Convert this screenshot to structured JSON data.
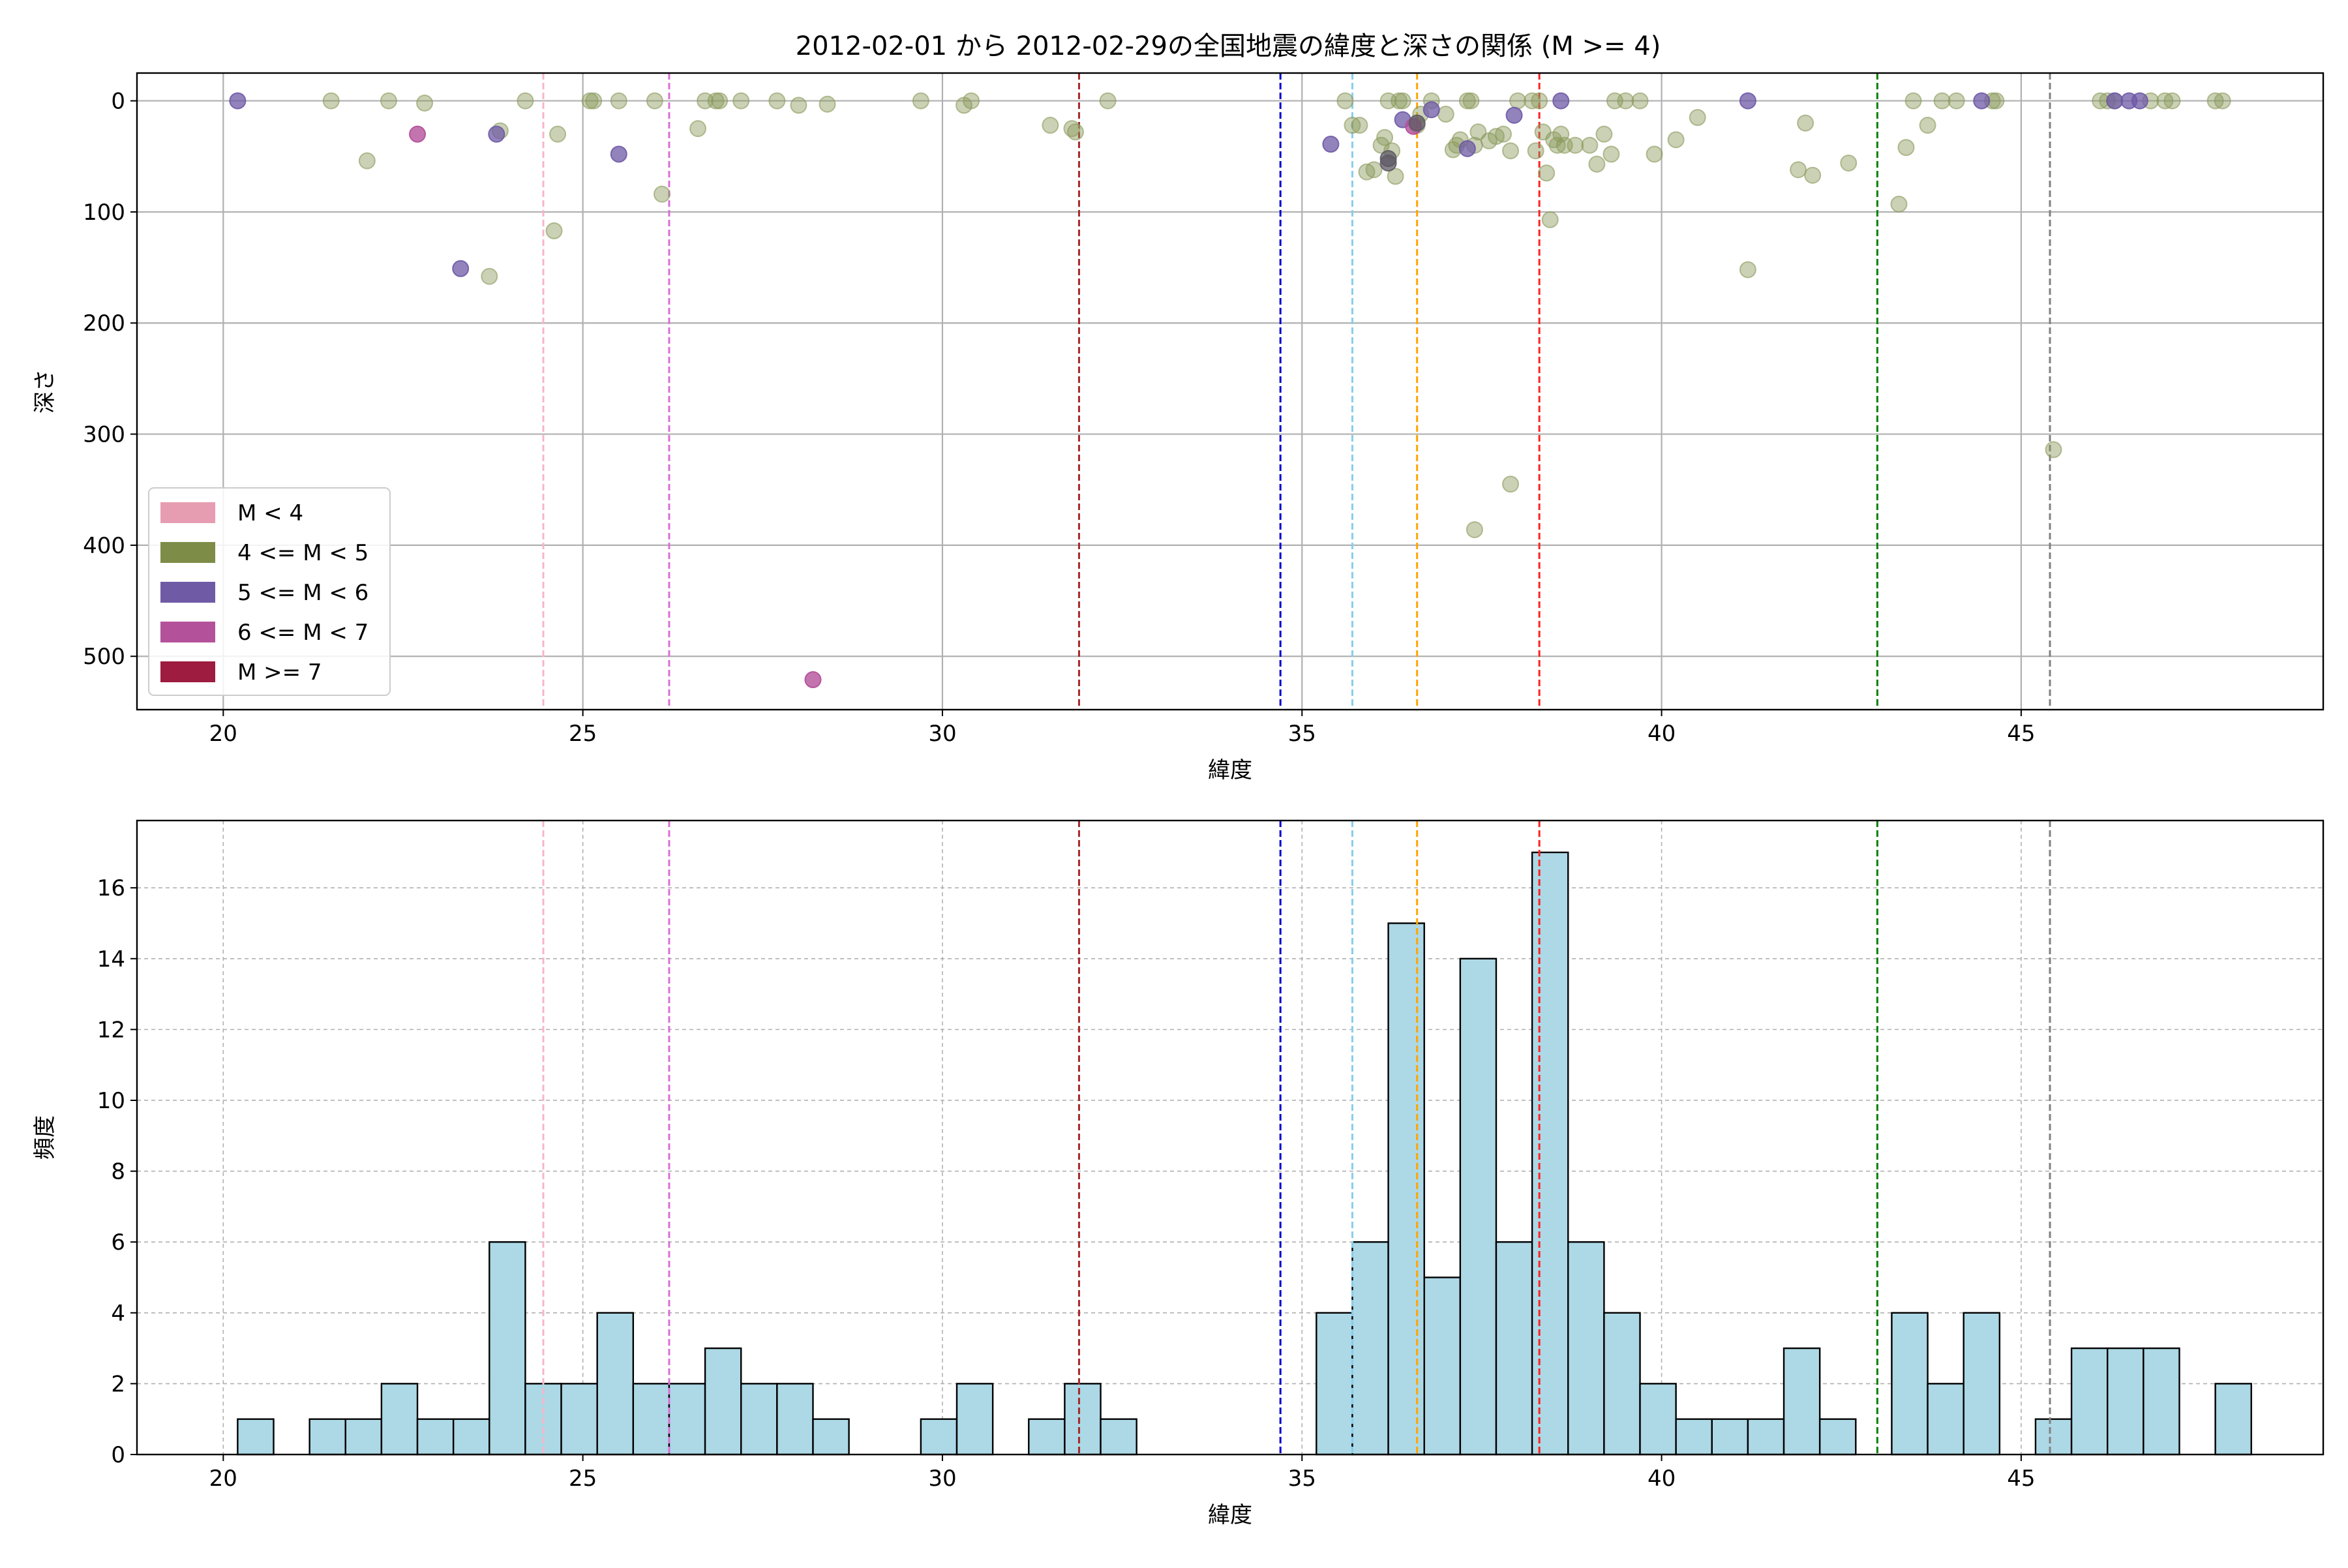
{
  "title": "2012-02-01 から 2012-02-29の全国地震の緯度と深さの関係 (M >= 4)",
  "colors": {
    "scatter_default": "#8a9a5b",
    "hist_fill": "#add8e6",
    "grid": "#b0b0b0"
  },
  "chart_data": [
    {
      "type": "scatter",
      "xlabel": "緯度",
      "ylabel": "深さ",
      "xlim": [
        18.8,
        49.2
      ],
      "ylim": [
        548,
        -25
      ],
      "y_inverted": true,
      "grid": true,
      "x_ticks": [
        20,
        25,
        30,
        35,
        40,
        45
      ],
      "y_ticks": [
        0,
        100,
        200,
        300,
        400,
        500
      ],
      "legend": {
        "position": "lower-left",
        "entries": [
          {
            "label": "M < 4",
            "color": "#e79db1"
          },
          {
            "label": "4 <= M < 5",
            "color": "#7d8c47"
          },
          {
            "label": "5 <= M < 6",
            "color": "#6f5aa6"
          },
          {
            "label": "6 <= M < 7",
            "color": "#b4519b"
          },
          {
            "label": "M >= 7",
            "color": "#9d1c3f"
          }
        ]
      },
      "reference_lines": [
        {
          "x": 24.45,
          "color": "#f7b6c8"
        },
        {
          "x": 26.2,
          "color": "#da70d6"
        },
        {
          "x": 31.9,
          "color": "#a52a2a"
        },
        {
          "x": 34.7,
          "color": "#0000cd"
        },
        {
          "x": 35.7,
          "color": "#87ceeb"
        },
        {
          "x": 36.6,
          "color": "#ffa500"
        },
        {
          "x": 38.3,
          "color": "#ff2020"
        },
        {
          "x": 43.0,
          "color": "#008000"
        },
        {
          "x": 45.4,
          "color": "#808080"
        }
      ],
      "series": [
        {
          "class": "4 <= M < 5",
          "color": "#8a9a5b",
          "opacity": 0.45,
          "points": [
            [
              21.5,
              0
            ],
            [
              22.0,
              54
            ],
            [
              22.3,
              0
            ],
            [
              22.8,
              2
            ],
            [
              23.7,
              158
            ],
            [
              23.85,
              27
            ],
            [
              24.2,
              0
            ],
            [
              24.6,
              117
            ],
            [
              24.65,
              30
            ],
            [
              25.1,
              0
            ],
            [
              25.15,
              0
            ],
            [
              25.5,
              0
            ],
            [
              26.0,
              0
            ],
            [
              26.1,
              84
            ],
            [
              26.6,
              25
            ],
            [
              26.7,
              0
            ],
            [
              26.85,
              0
            ],
            [
              26.9,
              0
            ],
            [
              27.2,
              0
            ],
            [
              27.7,
              0
            ],
            [
              28.0,
              4
            ],
            [
              28.4,
              3
            ],
            [
              29.7,
              0
            ],
            [
              30.3,
              4
            ],
            [
              30.4,
              0
            ],
            [
              31.5,
              22
            ],
            [
              31.8,
              25
            ],
            [
              31.85,
              28
            ],
            [
              32.3,
              0
            ],
            [
              35.6,
              0
            ],
            [
              35.7,
              22
            ],
            [
              35.8,
              22
            ],
            [
              35.9,
              64
            ],
            [
              36.0,
              62
            ],
            [
              36.1,
              40
            ],
            [
              36.15,
              33
            ],
            [
              36.2,
              0
            ],
            [
              36.25,
              45
            ],
            [
              36.3,
              68
            ],
            [
              36.35,
              0
            ],
            [
              36.4,
              0
            ],
            [
              36.6,
              22
            ],
            [
              36.65,
              12
            ],
            [
              36.8,
              0
            ],
            [
              37.0,
              12
            ],
            [
              37.1,
              44
            ],
            [
              37.15,
              40
            ],
            [
              37.2,
              35
            ],
            [
              37.3,
              0
            ],
            [
              37.35,
              0
            ],
            [
              37.4,
              40
            ],
            [
              37.45,
              28
            ],
            [
              37.6,
              36
            ],
            [
              37.7,
              32
            ],
            [
              37.8,
              30
            ],
            [
              37.9,
              45
            ],
            [
              38.0,
              0
            ],
            [
              38.2,
              0
            ],
            [
              38.25,
              45
            ],
            [
              38.3,
              0
            ],
            [
              38.35,
              28
            ],
            [
              38.4,
              65
            ],
            [
              38.45,
              107
            ],
            [
              38.5,
              35
            ],
            [
              38.55,
              40
            ],
            [
              38.6,
              30
            ],
            [
              38.65,
              40
            ],
            [
              38.8,
              40
            ],
            [
              39.0,
              40
            ],
            [
              39.1,
              57
            ],
            [
              39.2,
              30
            ],
            [
              39.3,
              48
            ],
            [
              39.35,
              0
            ],
            [
              39.5,
              0
            ],
            [
              39.7,
              0
            ],
            [
              39.9,
              48
            ],
            [
              40.2,
              35
            ],
            [
              40.5,
              15
            ],
            [
              41.2,
              152
            ],
            [
              41.9,
              62
            ],
            [
              42.0,
              20
            ],
            [
              42.1,
              67
            ],
            [
              42.6,
              56
            ],
            [
              43.3,
              93
            ],
            [
              43.4,
              42
            ],
            [
              43.5,
              0
            ],
            [
              43.7,
              22
            ],
            [
              43.9,
              0
            ],
            [
              44.1,
              0
            ],
            [
              44.6,
              0
            ],
            [
              44.65,
              0
            ],
            [
              45.45,
              314
            ],
            [
              46.1,
              0
            ],
            [
              46.2,
              0
            ],
            [
              46.3,
              0
            ],
            [
              46.8,
              0
            ],
            [
              47.0,
              0
            ],
            [
              47.1,
              0
            ],
            [
              47.7,
              0
            ],
            [
              47.8,
              0
            ],
            [
              37.9,
              345
            ],
            [
              37.4,
              386
            ]
          ]
        },
        {
          "class": "5 <= M < 6",
          "color": "#6f5aa6",
          "opacity": 0.75,
          "points": [
            [
              20.2,
              0
            ],
            [
              23.3,
              151
            ],
            [
              23.8,
              30
            ],
            [
              25.5,
              48
            ],
            [
              35.4,
              39
            ],
            [
              36.4,
              17
            ],
            [
              36.8,
              8
            ],
            [
              37.3,
              43
            ],
            [
              37.95,
              13
            ],
            [
              38.6,
              0
            ],
            [
              41.2,
              0
            ],
            [
              44.45,
              0
            ],
            [
              46.3,
              0
            ],
            [
              46.5,
              0
            ],
            [
              46.65,
              0
            ]
          ]
        },
        {
          "class": "6 <= M < 7",
          "color": "#b4519b",
          "opacity": 0.8,
          "points": [
            [
              22.7,
              30
            ],
            [
              28.2,
              521
            ],
            [
              36.55,
              23
            ]
          ]
        },
        {
          "class": "mixed",
          "color": "#5e5a66",
          "opacity": 0.75,
          "points": [
            [
              36.2,
              52
            ],
            [
              36.2,
              56
            ],
            [
              36.6,
              20
            ]
          ]
        }
      ]
    },
    {
      "type": "bar",
      "xlabel": "緯度",
      "ylabel": "頻度",
      "xlim": [
        18.8,
        49.2
      ],
      "ylim": [
        0,
        17.9
      ],
      "grid": true,
      "x_ticks": [
        20,
        25,
        30,
        35,
        40,
        45
      ],
      "y_ticks": [
        0,
        2,
        4,
        6,
        8,
        10,
        12,
        14,
        16
      ],
      "bin_start": 20.2,
      "bin_width": 0.5,
      "values": [
        1,
        0,
        1,
        1,
        2,
        1,
        1,
        6,
        2,
        2,
        4,
        2,
        2,
        3,
        2,
        2,
        1,
        0,
        0,
        1,
        2,
        0,
        1,
        2,
        1,
        0,
        0,
        0,
        0,
        0,
        4,
        6,
        15,
        5,
        14,
        6,
        17,
        6,
        4,
        2,
        1,
        1,
        1,
        3,
        1,
        0,
        4,
        2,
        4,
        0,
        1,
        3,
        3,
        3,
        0,
        2
      ],
      "reference_lines": [
        {
          "x": 24.45,
          "color": "#f7b6c8"
        },
        {
          "x": 26.2,
          "color": "#da70d6"
        },
        {
          "x": 31.9,
          "color": "#a52a2a"
        },
        {
          "x": 34.7,
          "color": "#0000cd"
        },
        {
          "x": 35.7,
          "color": "#87ceeb"
        },
        {
          "x": 36.6,
          "color": "#ffa500"
        },
        {
          "x": 38.3,
          "color": "#ff2020"
        },
        {
          "x": 43.0,
          "color": "#008000"
        },
        {
          "x": 45.4,
          "color": "#808080"
        }
      ]
    }
  ]
}
